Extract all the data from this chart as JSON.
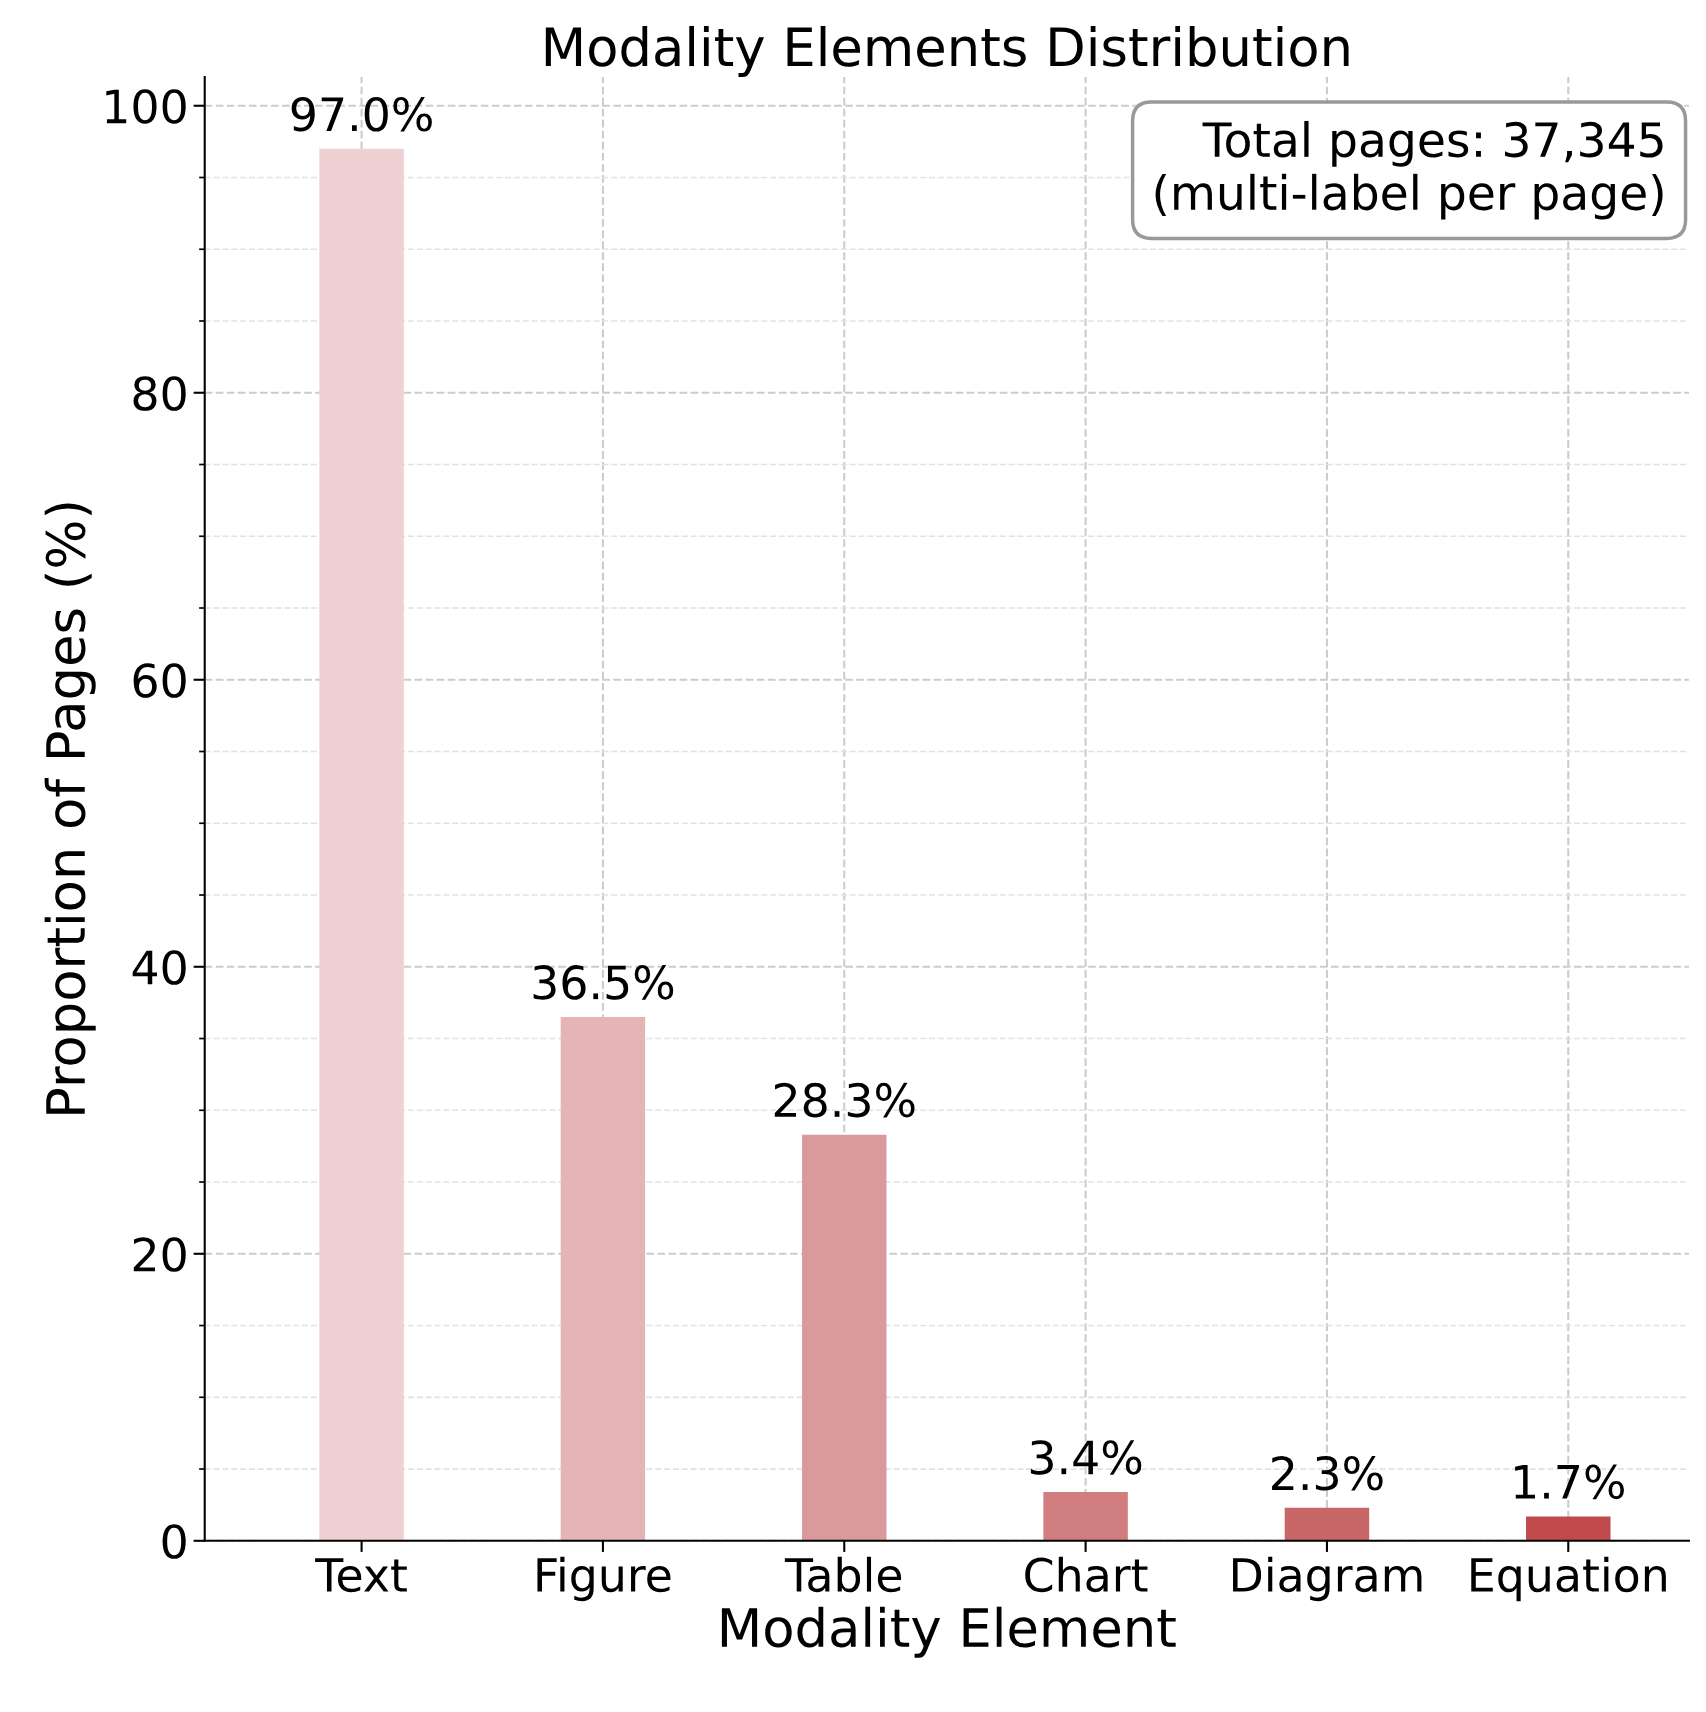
{
  "chart_data": {
    "type": "bar",
    "title": "Modality Elements Distribution",
    "xlabel": "Modality Element",
    "ylabel": "Proportion of Pages (%)",
    "categories": [
      "Text",
      "Figure",
      "Table",
      "Chart",
      "Diagram",
      "Equation"
    ],
    "values": [
      97.0,
      36.5,
      28.3,
      3.4,
      2.3,
      1.7
    ],
    "colors": [
      "#efd1d4",
      "#e5b4b6",
      "#d99a9c",
      "#d07d7f",
      "#c86668",
      "#c04a4c"
    ],
    "value_labels": [
      "97.0%",
      "36.5%",
      "28.3%",
      "3.4%",
      "2.3%",
      "1.7%"
    ],
    "ylim": [
      0,
      102
    ],
    "yticks": [
      0,
      {
        "value": 5,
        "label": null
      },
      {
        "value": 10,
        "label": null
      },
      {
        "value": 15,
        "label": null
      },
      20,
      {
        "value": 25,
        "label": null
      },
      {
        "value": 30,
        "label": null
      },
      {
        "value": 35,
        "label": null
      },
      40,
      {
        "value": 45,
        "label": null
      },
      {
        "value": 50,
        "label": null
      },
      {
        "value": 55,
        "label": null
      },
      60,
      {
        "value": 65,
        "label": null
      },
      {
        "value": 70,
        "label": null
      },
      {
        "value": 75,
        "label": null
      },
      80,
      {
        "value": 85,
        "label": null
      },
      {
        "value": 90,
        "label": null
      },
      {
        "value": 95,
        "label": null
      },
      100
    ],
    "annotations": [
      "Total pages: 37,345\n(multi-label per page)"
    ],
    "grid": true
  }
}
